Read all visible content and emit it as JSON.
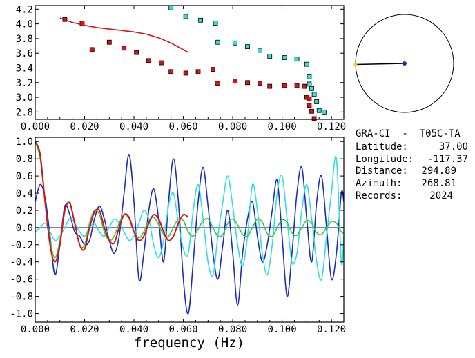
{
  "info": {
    "station": "GRA-CI  -  T05C-TA",
    "latitude_label": "Latitude:",
    "latitude": "37.00",
    "longitude_label": "Longitude:",
    "longitude": "-117.37",
    "distance_label": "Distance:",
    "distance": "294.89",
    "azimuth_label": "Azimuth:",
    "azimuth": "268.81",
    "records_label": "Records:",
    "records": "2024"
  },
  "chart_data": [
    {
      "type": "scatter",
      "title": "",
      "xlabel": "",
      "ylabel": "",
      "xlim": [
        0.0,
        0.125
      ],
      "ylim": [
        2.7,
        4.25
      ],
      "grid": false,
      "x_ticks": [
        "0.000",
        "0.020",
        "0.040",
        "0.060",
        "0.080",
        "0.100",
        "0.120"
      ],
      "y_ticks": [
        "2.8",
        "3.0",
        "3.2",
        "3.4",
        "3.6",
        "3.8",
        "4.0",
        "4.2"
      ],
      "series": [
        {
          "kind": "squares",
          "color": "#dd1111",
          "x": [
            0.012,
            0.019,
            0.023,
            0.03,
            0.036,
            0.041,
            0.046,
            0.051,
            0.055,
            0.061,
            0.066,
            0.072,
            0.074,
            0.081,
            0.086,
            0.091,
            0.095,
            0.101,
            0.106,
            0.109,
            0.11,
            0.111,
            0.111,
            0.112,
            0.113
          ],
          "y": [
            4.06,
            4.01,
            3.65,
            3.75,
            3.67,
            3.61,
            3.5,
            3.47,
            3.35,
            3.33,
            3.35,
            3.38,
            3.19,
            3.22,
            3.2,
            3.19,
            3.15,
            3.16,
            3.16,
            3.15,
            3.0,
            2.98,
            2.89,
            2.81,
            2.71
          ]
        },
        {
          "kind": "squares",
          "color": "#33dddd",
          "x": [
            0.055,
            0.061,
            0.067,
            0.073,
            0.074,
            0.081,
            0.086,
            0.091,
            0.095,
            0.101,
            0.106,
            0.11,
            0.111,
            0.111,
            0.112,
            0.113,
            0.114,
            0.115,
            0.117
          ],
          "y": [
            4.22,
            4.1,
            4.05,
            4.01,
            3.75,
            3.74,
            3.69,
            3.64,
            3.56,
            3.54,
            3.52,
            3.45,
            3.28,
            3.18,
            3.12,
            3.04,
            2.94,
            2.82,
            2.8
          ]
        },
        {
          "kind": "line",
          "color": "#dd1111",
          "x": [
            0.01,
            0.015,
            0.02,
            0.025,
            0.03,
            0.035,
            0.04,
            0.045,
            0.05,
            0.055,
            0.06,
            0.062
          ],
          "y": [
            4.08,
            4.02,
            3.98,
            3.95,
            3.93,
            3.91,
            3.89,
            3.86,
            3.81,
            3.74,
            3.65,
            3.61
          ]
        }
      ]
    },
    {
      "type": "line",
      "title": "",
      "xlabel": "frequency (Hz)",
      "ylabel": "",
      "xlim": [
        0.0,
        0.125
      ],
      "ylim": [
        -1.1,
        1.05
      ],
      "grid": false,
      "x_ticks": [
        "0.000",
        "0.020",
        "0.040",
        "0.060",
        "0.080",
        "0.100",
        "0.120"
      ],
      "y_ticks": [
        "-1.0",
        "-0.8",
        "-0.6",
        "-0.4",
        "-0.2",
        "0.0",
        "0.2",
        "0.4",
        "0.6",
        "0.8",
        "1.0"
      ],
      "series": [
        {
          "color": "#1a2dbb",
          "x": [
            0.0,
            0.002,
            0.004,
            0.006,
            0.008,
            0.01,
            0.012,
            0.014,
            0.016,
            0.018,
            0.02,
            0.022,
            0.024,
            0.026,
            0.028,
            0.03,
            0.032,
            0.034,
            0.036,
            0.038,
            0.04,
            0.042,
            0.044,
            0.046,
            0.048,
            0.05,
            0.052,
            0.054,
            0.056,
            0.058,
            0.06,
            0.062,
            0.064,
            0.066,
            0.068,
            0.07,
            0.072,
            0.074,
            0.076,
            0.078,
            0.08,
            0.082,
            0.084,
            0.086,
            0.088,
            0.09,
            0.092,
            0.094,
            0.096,
            0.098,
            0.1,
            0.102,
            0.104,
            0.106,
            0.108,
            0.11,
            0.112,
            0.114,
            0.116,
            0.118,
            0.12,
            0.122,
            0.124,
            0.125
          ],
          "y": [
            0.3,
            0.5,
            0.35,
            -0.1,
            -0.55,
            -0.2,
            0.25,
            0.15,
            -0.05,
            -0.1,
            -0.2,
            -0.15,
            0.1,
            0.25,
            0.1,
            -0.15,
            -0.3,
            -0.1,
            0.4,
            0.85,
            0.3,
            -0.6,
            -0.3,
            0.2,
            0.45,
            0.1,
            -0.4,
            0.3,
            0.8,
            0.3,
            -0.6,
            -1.0,
            -0.4,
            0.3,
            0.7,
            0.25,
            -0.3,
            -0.6,
            -0.2,
            0.2,
            -0.3,
            -0.9,
            -0.3,
            0.1,
            0.3,
            -0.1,
            -0.4,
            -0.2,
            0.2,
            0.55,
            -0.1,
            -0.8,
            -0.3,
            0.4,
            0.7,
            0.1,
            -0.4,
            0.3,
            0.6,
            0.0,
            -0.6,
            -0.3,
            0.4,
            0.3
          ]
        },
        {
          "color": "#33dddd",
          "x": [
            0.0,
            0.002,
            0.004,
            0.006,
            0.008,
            0.01,
            0.012,
            0.014,
            0.016,
            0.018,
            0.02,
            0.022,
            0.024,
            0.026,
            0.028,
            0.03,
            0.032,
            0.034,
            0.036,
            0.038,
            0.04,
            0.042,
            0.044,
            0.046,
            0.048,
            0.05,
            0.052,
            0.054,
            0.056,
            0.058,
            0.06,
            0.062,
            0.064,
            0.066,
            0.068,
            0.07,
            0.072,
            0.074,
            0.076,
            0.078,
            0.08,
            0.082,
            0.084,
            0.086,
            0.088,
            0.09,
            0.092,
            0.094,
            0.096,
            0.098,
            0.1,
            0.102,
            0.104,
            0.106,
            0.108,
            0.11,
            0.112,
            0.114,
            0.116,
            0.118,
            0.12,
            0.122,
            0.124,
            0.125
          ],
          "y": [
            -0.05,
            0.0,
            0.05,
            -0.05,
            -0.15,
            -0.1,
            0.0,
            0.1,
            0.05,
            -0.05,
            -0.1,
            0.0,
            0.05,
            -0.05,
            -0.1,
            0.0,
            0.1,
            0.05,
            -0.05,
            -0.15,
            -0.1,
            0.05,
            0.2,
            0.1,
            -0.2,
            -0.35,
            -0.15,
            0.25,
            0.4,
            0.05,
            -0.25,
            -0.3,
            0.2,
            0.5,
            0.1,
            -0.4,
            -0.55,
            -0.1,
            0.3,
            0.6,
            0.25,
            -0.2,
            -0.45,
            -0.1,
            0.5,
            0.2,
            -0.3,
            -0.55,
            -0.2,
            0.4,
            0.6,
            0.1,
            -0.4,
            -0.3,
            0.2,
            0.5,
            0.1,
            -0.4,
            -0.6,
            -0.1,
            0.4,
            0.8,
            -0.4,
            -0.1
          ]
        },
        {
          "color": "#33cc33",
          "x": [
            0.0,
            0.002,
            0.004,
            0.006,
            0.008,
            0.01,
            0.012,
            0.014,
            0.016,
            0.018,
            0.02,
            0.022,
            0.024,
            0.026,
            0.028,
            0.03,
            0.032,
            0.034,
            0.036,
            0.038,
            0.04,
            0.042,
            0.044,
            0.046,
            0.048,
            0.05,
            0.052,
            0.054,
            0.056,
            0.058,
            0.06,
            0.062,
            0.064,
            0.066,
            0.068,
            0.07,
            0.072,
            0.074,
            0.076,
            0.078,
            0.08,
            0.082,
            0.084,
            0.086,
            0.088,
            0.09,
            0.092,
            0.094,
            0.096,
            0.098,
            0.1,
            0.102,
            0.104,
            0.106,
            0.108,
            0.11,
            0.112,
            0.114,
            0.116,
            0.118,
            0.12,
            0.122,
            0.124,
            0.125
          ],
          "y": [
            1.0,
            0.8,
            0.3,
            -0.15,
            -0.35,
            -0.15,
            0.2,
            0.3,
            0.05,
            -0.2,
            -0.2,
            0.05,
            0.2,
            0.15,
            -0.05,
            -0.15,
            -0.1,
            0.05,
            0.15,
            0.1,
            -0.05,
            -0.12,
            -0.05,
            0.08,
            0.12,
            0.03,
            -0.08,
            -0.1,
            0.0,
            0.1,
            0.08,
            -0.05,
            -0.1,
            -0.02,
            0.08,
            0.1,
            0.0,
            -0.1,
            -0.08,
            0.05,
            0.1,
            0.03,
            -0.08,
            -0.1,
            0.0,
            0.1,
            0.06,
            -0.07,
            -0.1,
            0.0,
            0.09,
            0.06,
            -0.06,
            -0.09,
            0.0,
            0.08,
            0.05,
            -0.06,
            -0.08,
            0.0,
            0.07,
            0.05,
            -0.05,
            -0.07
          ]
        },
        {
          "color": "#dd1111",
          "x": [
            0.0,
            0.002,
            0.004,
            0.006,
            0.008,
            0.01,
            0.012,
            0.014,
            0.016,
            0.018,
            0.02,
            0.022,
            0.024,
            0.026,
            0.028,
            0.03,
            0.032,
            0.034,
            0.036,
            0.038,
            0.04,
            0.042,
            0.044,
            0.046,
            0.048,
            0.05,
            0.052,
            0.054,
            0.056,
            0.058,
            0.06,
            0.062
          ],
          "y": [
            1.0,
            0.85,
            0.3,
            -0.2,
            -0.4,
            -0.2,
            0.2,
            0.28,
            0.05,
            -0.2,
            -0.25,
            0.0,
            0.18,
            0.2,
            0.0,
            -0.15,
            -0.18,
            0.0,
            0.15,
            0.12,
            -0.05,
            -0.15,
            -0.1,
            0.05,
            0.15,
            0.1,
            -0.05,
            -0.15,
            -0.1,
            0.05,
            0.15,
            0.12
          ]
        }
      ]
    }
  ],
  "compass": {
    "azimuth_deg": 268.81,
    "colors": {
      "needle": "#000000",
      "station_dot": "#1a2dbb",
      "end_dot": "#ffcc00"
    }
  }
}
